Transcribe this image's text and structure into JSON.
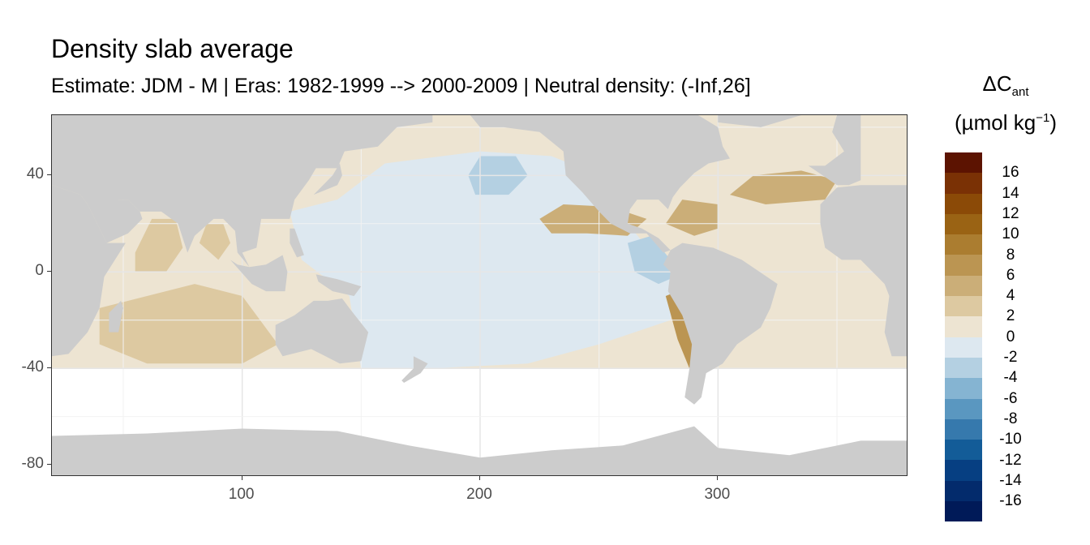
{
  "title": "Density slab average",
  "subtitle": "Estimate: JDM - M | Eras: 1982-1999 --> 2000-2009 | Neutral density: (-Inf,26]",
  "legend": {
    "symbol": "ΔC",
    "subscript": "ant",
    "unit_prefix": "(µmol kg",
    "unit_exp": "−1",
    "unit_suffix": ")",
    "labels": [
      "16",
      "14",
      "12",
      "10",
      "8",
      "6",
      "4",
      "2",
      "0",
      "-2",
      "-4",
      "-6",
      "-8",
      "-10",
      "-12",
      "-14",
      "-16"
    ],
    "colors": [
      "#5c1301",
      "#7a3105",
      "#8b4a07",
      "#9a6314",
      "#ab7d30",
      "#bb9552",
      "#cbae78",
      "#ddc9a1",
      "#ede4d2",
      "#dde8f0",
      "#b4d0e2",
      "#85b4d2",
      "#5a97c0",
      "#3679ad",
      "#135c98",
      "#063f82",
      "#032b6c",
      "#001a58"
    ]
  },
  "chart_data": {
    "type": "heatmap",
    "title": "Density slab average",
    "subtitle": "Estimate: JDM - M | Eras: 1982-1999 --> 2000-2009 | Neutral density: (-Inf,26]",
    "xlim": [
      20,
      380
    ],
    "ylim": [
      -85,
      65
    ],
    "x_ticks": [
      100,
      200,
      300
    ],
    "y_ticks": [
      40,
      0,
      -40,
      -80
    ],
    "x_tick_labels": [
      "100",
      "200",
      "300"
    ],
    "y_tick_labels": [
      "40",
      "0",
      "-40",
      "-80"
    ],
    "grid": true,
    "colorbar_range": [
      -18,
      18
    ],
    "colorbar_step": 2,
    "land_color": "#cccccc",
    "ocean_base_value": 1,
    "data_mask_south_limit": -40,
    "regions": [
      {
        "name": "pacific-base",
        "value": -1
      },
      {
        "name": "north-pacific-minimum",
        "value": -3
      },
      {
        "name": "north-atlantic-maximum",
        "value": 5
      },
      {
        "name": "tropical-east-pacific",
        "value": 5
      },
      {
        "name": "peru-upwelling",
        "value": 7
      },
      {
        "name": "arabian-sea",
        "value": 3
      },
      {
        "name": "bay-of-bengal",
        "value": 3
      },
      {
        "name": "caribbean",
        "value": 5
      },
      {
        "name": "indian-south",
        "value": 2
      },
      {
        "name": "panama-bight",
        "value": -3
      }
    ]
  }
}
